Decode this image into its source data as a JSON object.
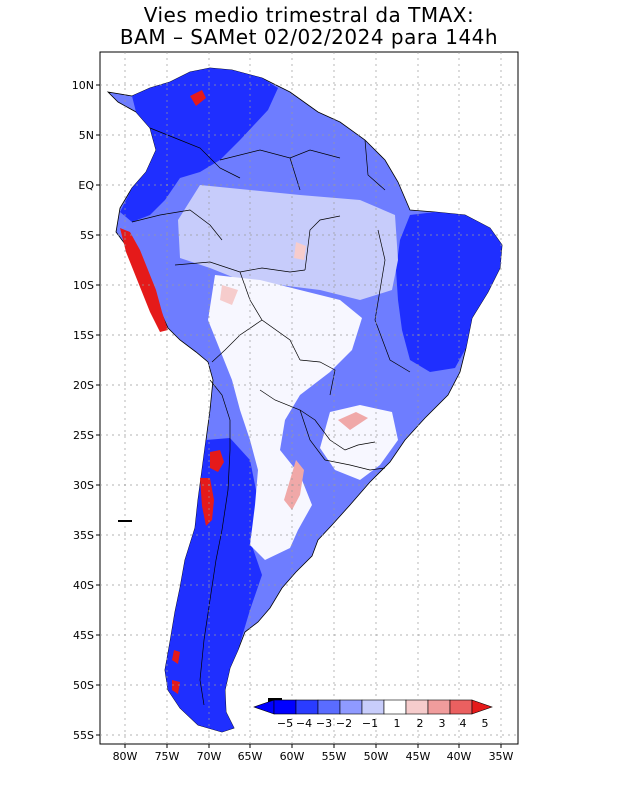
{
  "title": {
    "line1": "Vies medio trimestral da TMAX:",
    "line2": "BAM – SAMet 02/02/2024  para 144h"
  },
  "lat_labels": [
    "10N",
    "5N",
    "EQ",
    "5S",
    "10S",
    "15S",
    "20S",
    "25S",
    "30S",
    "35S",
    "40S",
    "45S",
    "50S",
    "55S"
  ],
  "lon_labels": [
    "80W",
    "75W",
    "70W",
    "65W",
    "60W",
    "55W",
    "50W",
    "45W",
    "40W",
    "35W"
  ],
  "colorbar": {
    "labels": [
      "−5",
      "−4",
      "−3",
      "−2",
      "−1",
      "1",
      "2",
      "3",
      "4",
      "5"
    ],
    "colors": [
      "#0000ff",
      "#2a3cff",
      "#5a6cff",
      "#8f9aff",
      "#c8cdfb",
      "#ffffff",
      "#f6cccc",
      "#f09c9c",
      "#ea6060",
      "#e51a1a"
    ]
  },
  "colors": {
    "ocean": "#ffffff",
    "strong_cold": "#1f2fff",
    "moderate_cold": "#6e7dff",
    "weak_cold": "#c7ccfb",
    "near_zero": "#f7f7ff",
    "warm": "#f0a8a8",
    "hot": "#e51a1a",
    "border": "#000000",
    "grid": "#9a9a9a"
  }
}
